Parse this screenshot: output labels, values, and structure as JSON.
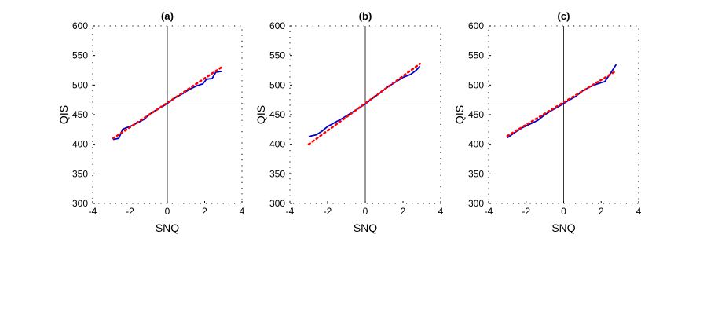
{
  "chart_data": [
    {
      "type": "line",
      "title": "(a)",
      "xlabel": "SNQ",
      "ylabel": "QIS",
      "xlim": [
        -4,
        4
      ],
      "ylim": [
        300,
        600
      ],
      "xticks": [
        -4,
        -2,
        0,
        2,
        4
      ],
      "yticks": [
        300,
        350,
        400,
        450,
        500,
        550,
        600
      ],
      "reference_lines": {
        "x": 0,
        "y": 468
      },
      "grid": false,
      "series": [
        {
          "style": "solid",
          "color": "#0000cc",
          "x": [
            -2.9,
            -2.6,
            -2.4,
            -2.2,
            -2.0,
            -1.6,
            -1.2,
            -1.0,
            -0.6,
            -0.2,
            0.0,
            0.4,
            0.8,
            1.2,
            1.6,
            1.9,
            2.1,
            2.4,
            2.6,
            2.9
          ],
          "y": [
            408,
            410,
            425,
            428,
            430,
            436,
            443,
            450,
            458,
            465,
            469,
            478,
            485,
            493,
            499,
            502,
            510,
            511,
            522,
            523
          ]
        },
        {
          "style": "dotted",
          "color": "#ff0000",
          "x": [
            -2.9,
            2.9
          ],
          "y": [
            410,
            530
          ]
        }
      ]
    },
    {
      "type": "line",
      "title": "(b)",
      "xlabel": "SNQ",
      "ylabel": "QIS",
      "xlim": [
        -4,
        4
      ],
      "ylim": [
        300,
        600
      ],
      "xticks": [
        -4,
        -2,
        0,
        2,
        4
      ],
      "yticks": [
        300,
        350,
        400,
        450,
        500,
        550,
        600
      ],
      "reference_lines": {
        "x": 0,
        "y": 468
      },
      "grid": false,
      "series": [
        {
          "style": "solid",
          "color": "#0000cc",
          "x": [
            -3.0,
            -2.6,
            -2.3,
            -2.0,
            -1.6,
            -1.2,
            -0.8,
            -0.4,
            0.0,
            0.4,
            0.8,
            1.2,
            1.6,
            2.0,
            2.4,
            2.7,
            2.9
          ],
          "y": [
            413,
            416,
            422,
            430,
            437,
            444,
            452,
            460,
            468,
            478,
            487,
            497,
            505,
            513,
            518,
            525,
            532
          ]
        },
        {
          "style": "dotted",
          "color": "#ff0000",
          "x": [
            -3.0,
            2.9
          ],
          "y": [
            400,
            536
          ]
        }
      ]
    },
    {
      "type": "line",
      "title": "(c)",
      "xlabel": "SNQ",
      "ylabel": "QIS",
      "xlim": [
        -4,
        4
      ],
      "ylim": [
        300,
        600
      ],
      "xticks": [
        -4,
        -2,
        0,
        2,
        4
      ],
      "yticks": [
        300,
        350,
        400,
        450,
        500,
        550,
        600
      ],
      "reference_lines": {
        "x": 0,
        "y": 468
      },
      "grid": false,
      "series": [
        {
          "style": "solid",
          "color": "#0000cc",
          "x": [
            -3.0,
            -2.6,
            -2.2,
            -1.8,
            -1.4,
            -1.0,
            -0.6,
            -0.2,
            0.2,
            0.6,
            1.0,
            1.4,
            1.8,
            2.2,
            2.5,
            2.8
          ],
          "y": [
            411,
            420,
            428,
            434,
            440,
            450,
            458,
            465,
            473,
            480,
            490,
            497,
            502,
            506,
            520,
            535
          ]
        },
        {
          "style": "dotted",
          "color": "#ff0000",
          "x": [
            -3.0,
            2.8
          ],
          "y": [
            414,
            524
          ]
        }
      ]
    }
  ]
}
